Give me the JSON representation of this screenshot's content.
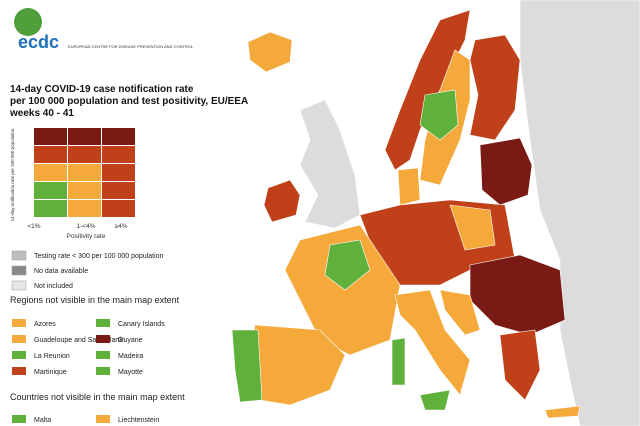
{
  "header": {
    "logo": "ecdc",
    "organisation": "EUROPEAN CENTRE FOR DISEASE PREVENTION AND CONTROL"
  },
  "title": [
    "14-day COVID-19 case notification rate",
    "per 100 000 population and test positivity, EU/EEA",
    "weeks 40 - 41"
  ],
  "matrix": {
    "y_label": "14-day notification rate per 100 000 population",
    "x_label": "Positivity rate",
    "x_labels": [
      "<1%",
      "1-<4%",
      "≥4%"
    ]
  },
  "legend": {
    "grey": [
      "Testing rate < 300 per 100 000 population",
      "No data available",
      "Not included"
    ],
    "regions_title": "Regions not visible in the main map extent",
    "regions": [
      "Azores",
      "Canary Islands",
      "Guadeloupe and Saint Martin",
      "Guyane",
      "La Reunion",
      "Madeira",
      "Martinique",
      "Mayotte"
    ],
    "countries_title": "Countries not visible in the main map extent",
    "countries": [
      "Malta",
      "Liechtenstein"
    ]
  }
}
